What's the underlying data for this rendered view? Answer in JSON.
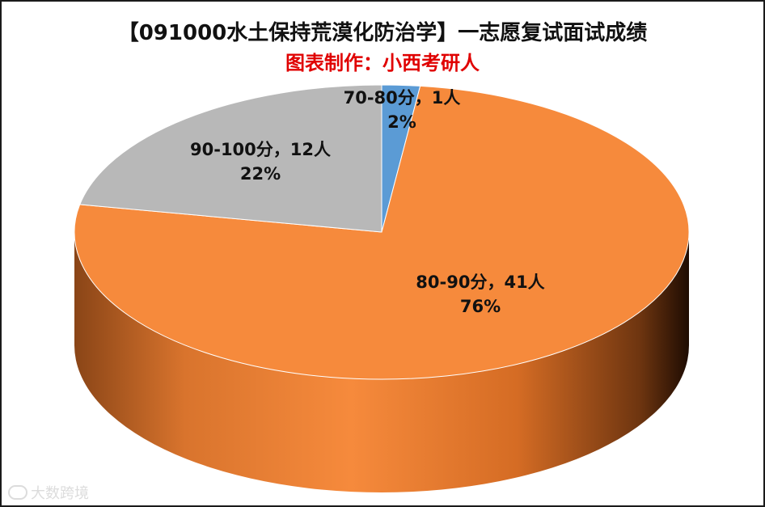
{
  "chart_data": {
    "type": "pie",
    "title": "【091000水土保持荒漠化防治学】一志愿复试面试成绩",
    "subtitle": "图表制作：小西考研人",
    "slices": [
      {
        "category": "70-80分",
        "count": 1,
        "percent": 2,
        "label": "70-80分，1人",
        "pct_label": "2%",
        "color": "#5b9bd5"
      },
      {
        "category": "80-90分",
        "count": 41,
        "percent": 76,
        "label": "80-90分，41人",
        "pct_label": "76%",
        "color": "#f68a3c"
      },
      {
        "category": "90-100分",
        "count": 12,
        "percent": 22,
        "label": "90-100分，12人",
        "pct_label": "22%",
        "color": "#b8b8b8"
      }
    ],
    "style": "3d"
  },
  "colors": {
    "title": "#111111",
    "subtitle": "#e00000",
    "border": "#1a1a1a"
  },
  "watermark": {
    "text": "大数跨境"
  }
}
